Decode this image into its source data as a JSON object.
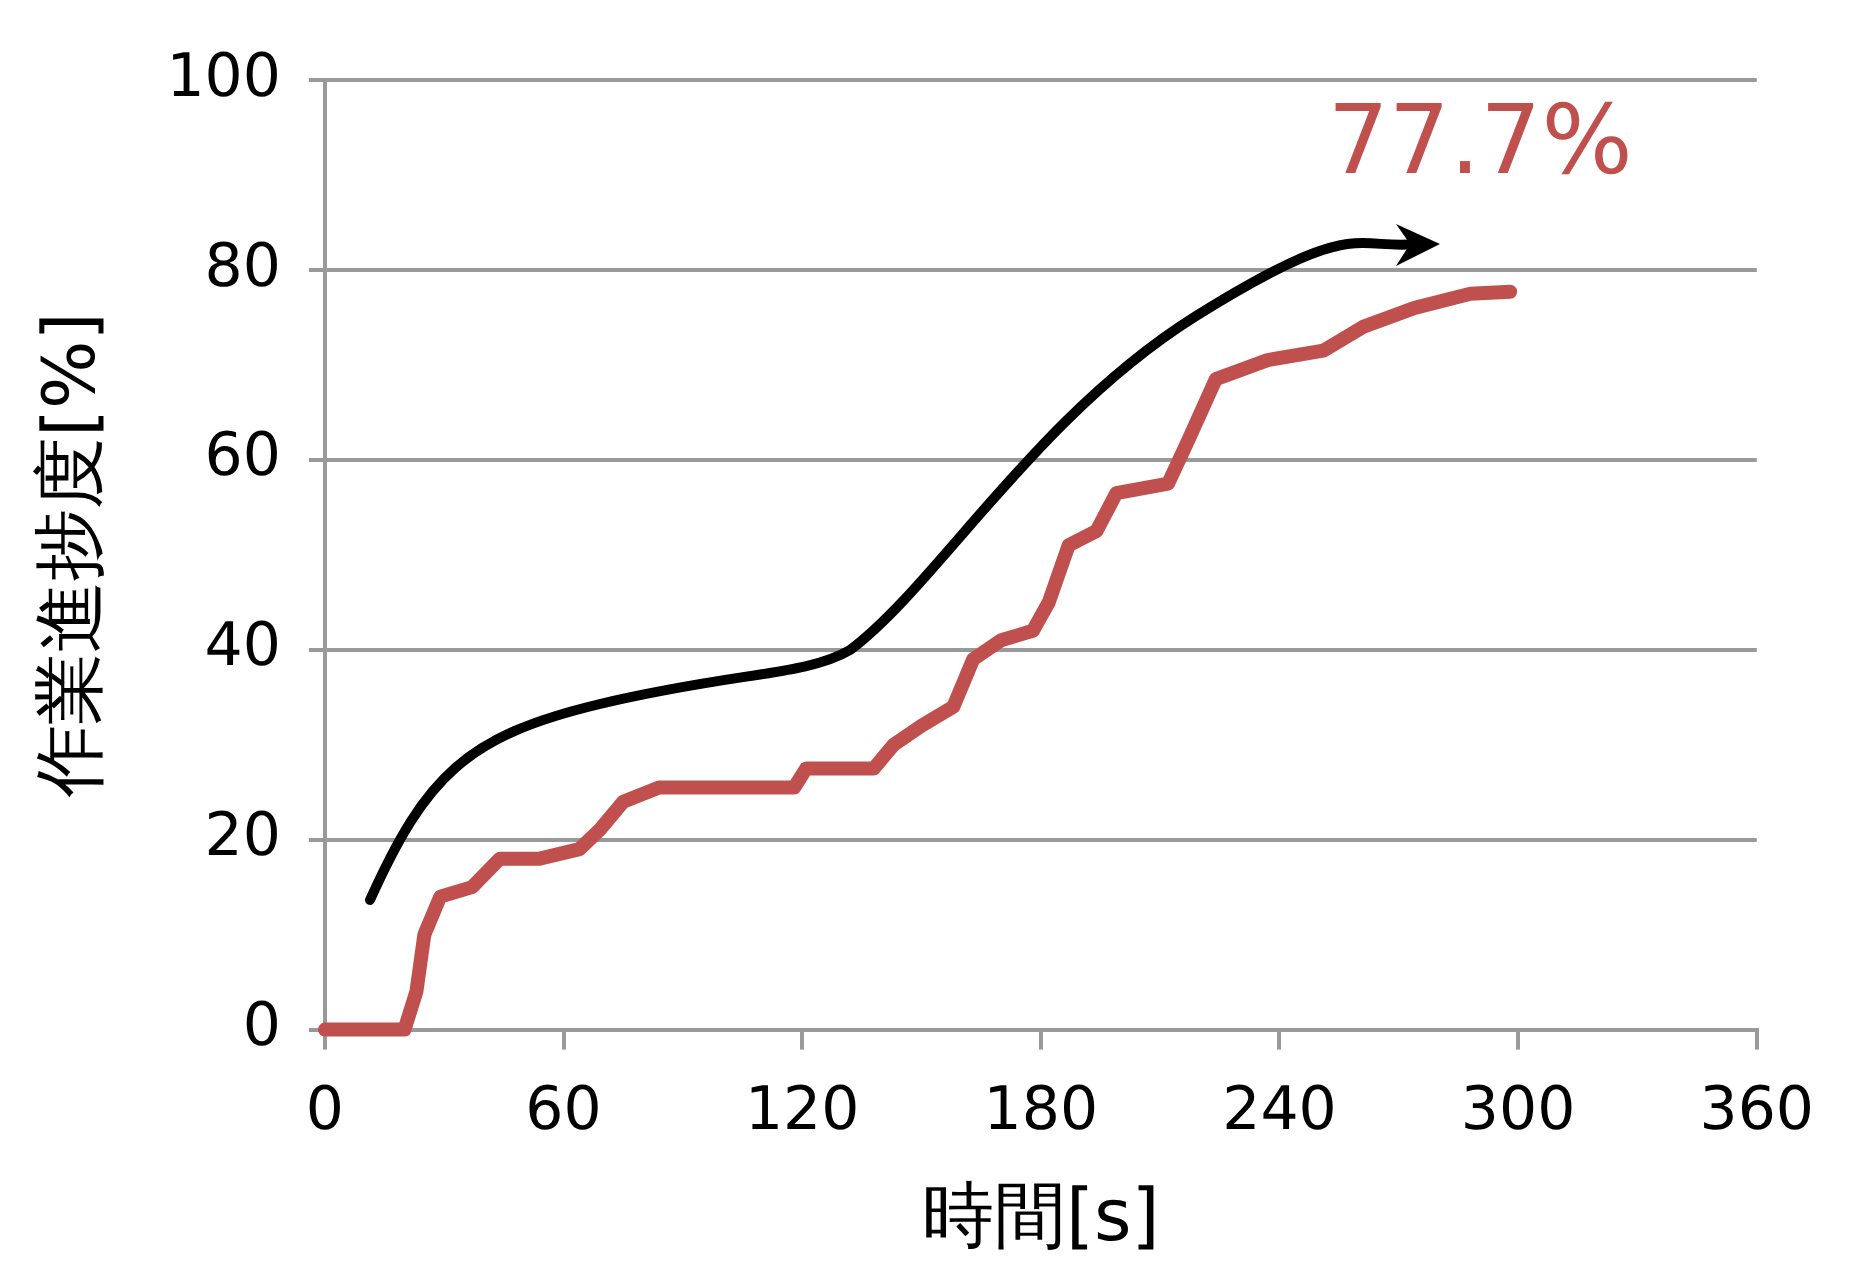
{
  "chart_data": {
    "type": "line",
    "xlabel": "時間[s]",
    "ylabel": "作業進捗度[%]",
    "xlim": [
      0,
      360
    ],
    "xticks": [
      0,
      60,
      120,
      180,
      240,
      300,
      360
    ],
    "ylim": [
      0,
      100
    ],
    "yticks": [
      0,
      20,
      40,
      60,
      80,
      100
    ],
    "grid": "y",
    "marker": "none",
    "line_style": "solid",
    "annotations": [
      {
        "text": "77.7%",
        "x": 298,
        "y": 77.7
      }
    ],
    "series": [
      {
        "color": "#c0504d",
        "x": [
          0,
          20,
          23,
          25,
          29,
          37,
          44,
          54,
          64,
          69,
          75,
          84,
          118,
          121,
          138,
          143,
          150,
          158,
          163,
          170,
          178,
          182,
          187,
          194,
          199,
          212,
          217,
          224,
          237,
          251,
          261,
          274,
          288,
          298
        ],
        "values": [
          0,
          0,
          4,
          10,
          14,
          15,
          18,
          18,
          19,
          21,
          24,
          25.5,
          25.5,
          27.5,
          27.5,
          30,
          32,
          34,
          39,
          41,
          42,
          45,
          51,
          52.5,
          56.5,
          57.5,
          62,
          68.5,
          70.5,
          71.5,
          74,
          76,
          77.5,
          77.7
        ]
      }
    ]
  }
}
